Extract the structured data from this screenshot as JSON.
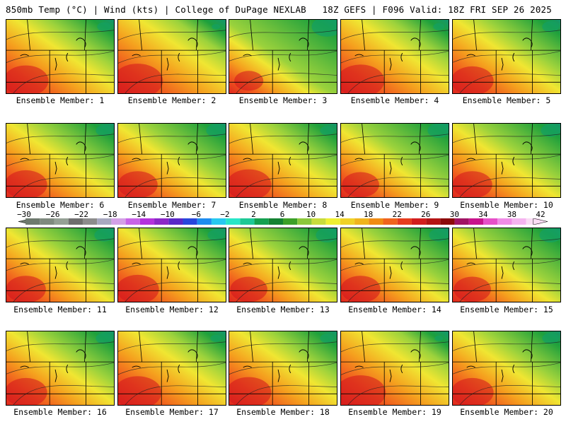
{
  "header": {
    "title": "850mb Temp (°C) | Wind (kts) | College of DuPage NEXLAB",
    "run_info": "18Z GEFS | F096 Valid: 18Z FRI SEP 26 2025"
  },
  "members": [
    {
      "label": "Ensemble Member: 1",
      "warmth": 0.85
    },
    {
      "label": "Ensemble Member: 2",
      "warmth": 0.95
    },
    {
      "label": "Ensemble Member: 3",
      "warmth": 0.55
    },
    {
      "label": "Ensemble Member: 4",
      "warmth": 0.9
    },
    {
      "label": "Ensemble Member: 5",
      "warmth": 0.8
    },
    {
      "label": "Ensemble Member: 6",
      "warmth": 0.8
    },
    {
      "label": "Ensemble Member: 7",
      "warmth": 0.75
    },
    {
      "label": "Ensemble Member: 8",
      "warmth": 0.85
    },
    {
      "label": "Ensemble Member: 9",
      "warmth": 0.7
    },
    {
      "label": "Ensemble Member: 10",
      "warmth": 0.75
    },
    {
      "label": "Ensemble Member: 11",
      "warmth": 0.75
    },
    {
      "label": "Ensemble Member: 12",
      "warmth": 0.8
    },
    {
      "label": "Ensemble Member: 13",
      "warmth": 0.7
    },
    {
      "label": "Ensemble Member: 14",
      "warmth": 0.75
    },
    {
      "label": "Ensemble Member: 15",
      "warmth": 0.7
    },
    {
      "label": "Ensemble Member: 16",
      "warmth": 0.8
    },
    {
      "label": "Ensemble Member: 17",
      "warmth": 0.9
    },
    {
      "label": "Ensemble Member: 18",
      "warmth": 0.85
    },
    {
      "label": "Ensemble Member: 19",
      "warmth": 0.95
    },
    {
      "label": "Ensemble Member: 20",
      "warmth": 0.8
    }
  ],
  "colorbar": {
    "ticks": [
      "−30",
      "−26",
      "−22",
      "−18",
      "−14",
      "−10",
      "−6",
      "−2",
      "2",
      "6",
      "10",
      "14",
      "18",
      "22",
      "26",
      "30",
      "34",
      "38",
      "42"
    ],
    "colors": [
      "#6e7a6e",
      "#7f8a7f",
      "#95a095",
      "#6e6e6e",
      "#8c8c8c",
      "#a8a8c0",
      "#d4a0e6",
      "#c864e6",
      "#b432dc",
      "#8c28c8",
      "#5a28c8",
      "#2846dc",
      "#1e8cf0",
      "#28c8f0",
      "#28e6c8",
      "#1ec896",
      "#14a050",
      "#148232",
      "#3ca028",
      "#8cc83c",
      "#c8dc3c",
      "#f0f032",
      "#f0d228",
      "#f0b41e",
      "#f08c14",
      "#f0641e",
      "#e63c1e",
      "#d21e1e",
      "#b41414",
      "#8c0a0a",
      "#a01464",
      "#c8148c",
      "#e650c8",
      "#f08ce6",
      "#f5b4f0",
      "#fadcf5"
    ]
  }
}
